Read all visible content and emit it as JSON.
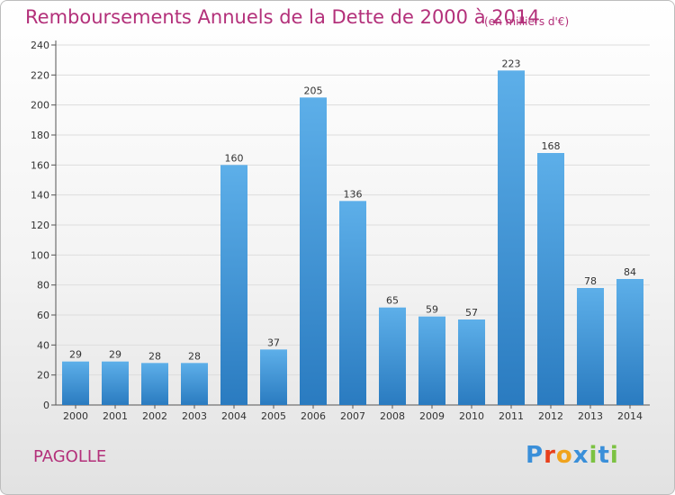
{
  "title": "Remboursements Annuels de la Dette de 2000 à 2014",
  "subtitle": "(en milliers d'€)",
  "commune": "PAGOLLE",
  "logo": {
    "letters": [
      "P",
      "r",
      "o",
      "x",
      "i",
      "t",
      "i"
    ],
    "colors": [
      "#3a8fd9",
      "#e8401c",
      "#f0a31d",
      "#3a8fd9",
      "#7cc242",
      "#3a8fd9",
      "#7cc242"
    ]
  },
  "colors": {
    "bar_light": "#5dafe9",
    "bar_dark": "#2a7bc0",
    "text": "#b3307a",
    "grid": "#dddddd"
  },
  "chart_data": {
    "type": "bar",
    "categories": [
      "2000",
      "2001",
      "2002",
      "2003",
      "2004",
      "2005",
      "2006",
      "2007",
      "2008",
      "2009",
      "2010",
      "2011",
      "2012",
      "2013",
      "2014"
    ],
    "values": [
      29,
      29,
      28,
      28,
      160,
      37,
      205,
      136,
      65,
      59,
      57,
      223,
      168,
      78,
      84
    ],
    "ylim": [
      0,
      240
    ],
    "yticks": [
      0,
      20,
      40,
      60,
      80,
      100,
      120,
      140,
      160,
      180,
      200,
      220,
      240
    ],
    "grid": true,
    "data_labels": true
  }
}
